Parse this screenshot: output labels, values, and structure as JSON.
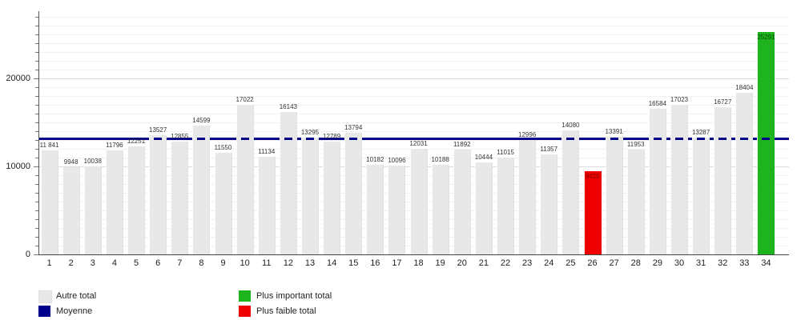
{
  "chart_data": {
    "type": "bar",
    "title": "",
    "xlabel": "",
    "ylabel": "",
    "categories": [
      "1",
      "2",
      "3",
      "4",
      "5",
      "6",
      "7",
      "8",
      "9",
      "10",
      "11",
      "12",
      "13",
      "14",
      "15",
      "16",
      "17",
      "18",
      "19",
      "20",
      "21",
      "22",
      "23",
      "24",
      "25",
      "26",
      "27",
      "28",
      "29",
      "30",
      "31",
      "32",
      "33",
      "34"
    ],
    "values": [
      11841,
      9948,
      10038,
      11796,
      12251,
      13527,
      12855,
      14599,
      11550,
      17022,
      11134,
      16143,
      13295,
      12789,
      13794,
      10182,
      10096,
      12031,
      10188,
      11892,
      10444,
      11015,
      12996,
      11357,
      14080,
      9425,
      13391,
      11953,
      16584,
      17023,
      13287,
      16727,
      18404,
      25291
    ],
    "bar_labels": [
      "11 841",
      "9948",
      "10038",
      "11796",
      "12251",
      "13527",
      "12855",
      "14599",
      "11550",
      "17022",
      "11134",
      "16143",
      "13295",
      "12789",
      "13794",
      "10182",
      "10096",
      "12031",
      "10188",
      "11892",
      "10444",
      "11015",
      "12996",
      "11357",
      "14080",
      "9425",
      "13391",
      "11953",
      "16584",
      "17023",
      "13287",
      "16727",
      "18404",
      "25291"
    ],
    "moyenne": 13204,
    "max_index": 33,
    "min_index": 25,
    "ylim": [
      0,
      27600
    ],
    "yticks": [
      0,
      10000,
      20000
    ],
    "ytick_labels": [
      "0",
      "10000",
      "20000"
    ],
    "grid": "horizontal, every 1000",
    "legend_position": "bottom",
    "colors": {
      "bar": "#e8e8e8",
      "moyenne": "#00008b",
      "max": "#1db41d",
      "min": "#ee0000",
      "grid_minor": "#f1f1f1",
      "grid_major": "#dcdcdc",
      "bar_label_min": "#8b0000",
      "bar_label_max": "#0a4d0a"
    },
    "legend": [
      {
        "label": "Autre total",
        "color": "#e8e8e8",
        "column": 0,
        "row": 0
      },
      {
        "label": "Moyenne",
        "color": "#00008b",
        "column": 0,
        "row": 1
      },
      {
        "label": "Plus important total",
        "color": "#1db41d",
        "column": 1,
        "row": 0
      },
      {
        "label": "Plus faible total",
        "color": "#ee0000",
        "column": 1,
        "row": 1
      }
    ]
  }
}
